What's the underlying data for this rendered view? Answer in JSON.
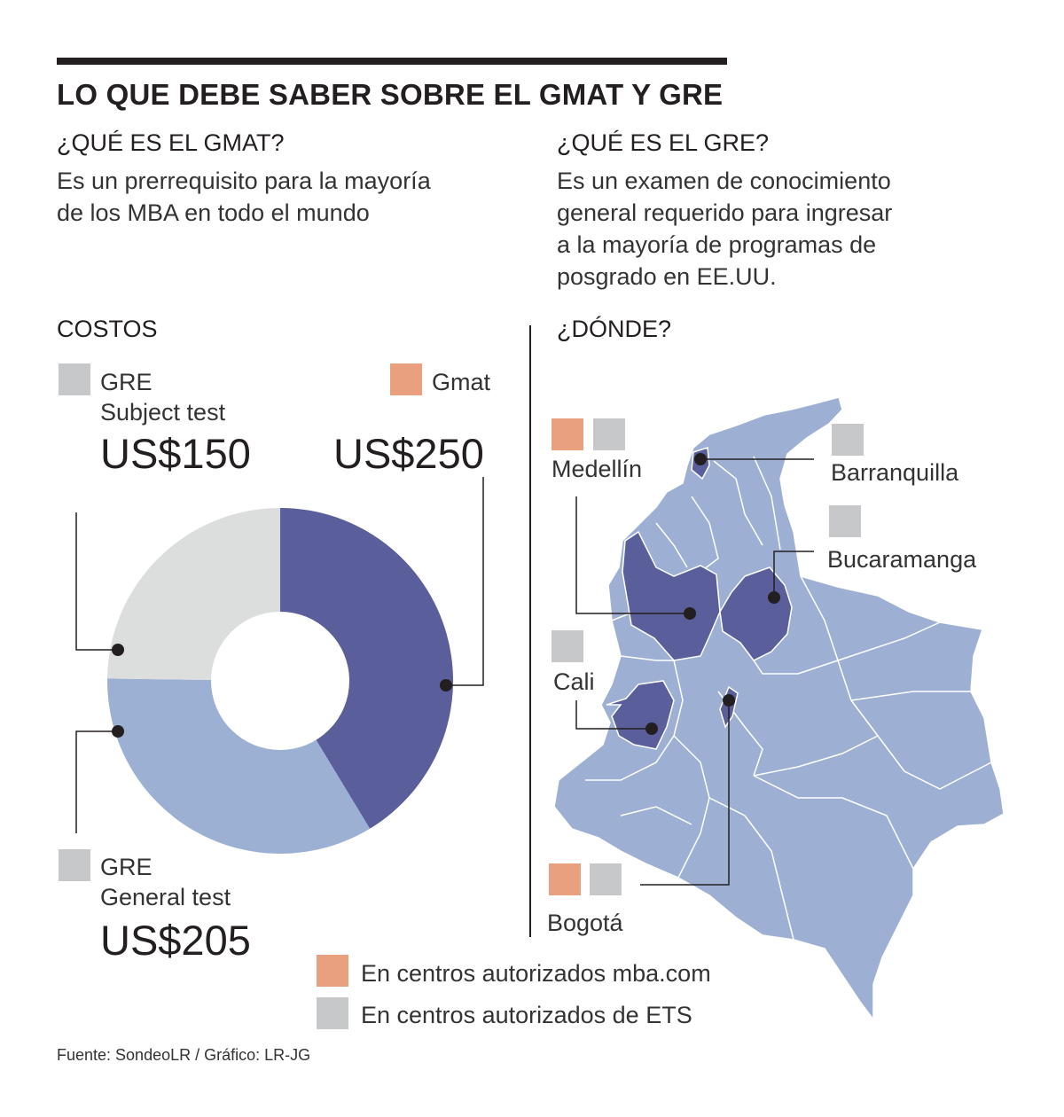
{
  "headline": "LO QUE DEBE SABER SOBRE EL GMAT Y GRE",
  "gmat_info": {
    "question": "¿QUÉ ES EL GMAT?",
    "lines": [
      "Es un prerrequisito para la mayoría",
      "de los MBA en todo el mundo"
    ]
  },
  "gre_info": {
    "question": "¿QUÉ ES EL GRE?",
    "lines": [
      "Es un examen de conocimiento",
      "general requerido para ingresar",
      "a la mayoría de programas de",
      "posgrado en EE.UU."
    ]
  },
  "costs_title": "COSTOS",
  "where_title": "¿DÓNDE?",
  "colors": {
    "gmat_swatch": "#e9a07f",
    "ets_swatch": "#c7c8c9",
    "gmat_slice": "#5a5e9b",
    "general_slice": "#9bb0d3",
    "subject_slice": "#dcdede",
    "map_fill": "#9db0d4",
    "map_highlight": "#5a5e9b",
    "map_border": "#ffffff",
    "text": "#231f20"
  },
  "chart_data": {
    "type": "pie",
    "title": "COSTOS",
    "unit": "US$",
    "categories": [
      "Gmat",
      "GRE General test",
      "GRE Subject test"
    ],
    "values": [
      250,
      205,
      150
    ],
    "slices": [
      {
        "label_lines": [
          "Gmat"
        ],
        "price": "US$250",
        "value": 250
      },
      {
        "label_lines": [
          "GRE",
          "General test"
        ],
        "price": "US$205",
        "value": 205
      },
      {
        "label_lines": [
          "GRE",
          "Subject test"
        ],
        "price": "US$150",
        "value": 150
      }
    ]
  },
  "cities": [
    {
      "name": "Medellín",
      "gmat": true,
      "ets": true
    },
    {
      "name": "Barranquilla",
      "gmat": false,
      "ets": true
    },
    {
      "name": "Bucaramanga",
      "gmat": false,
      "ets": true
    },
    {
      "name": "Cali",
      "gmat": false,
      "ets": true
    },
    {
      "name": "Bogotá",
      "gmat": true,
      "ets": true
    }
  ],
  "legend": [
    {
      "label": "En centros autorizados mba.com"
    },
    {
      "label": "En centros autorizados de ETS"
    }
  ],
  "source": "Fuente: SondeoLR / Gráfico: LR-JG"
}
